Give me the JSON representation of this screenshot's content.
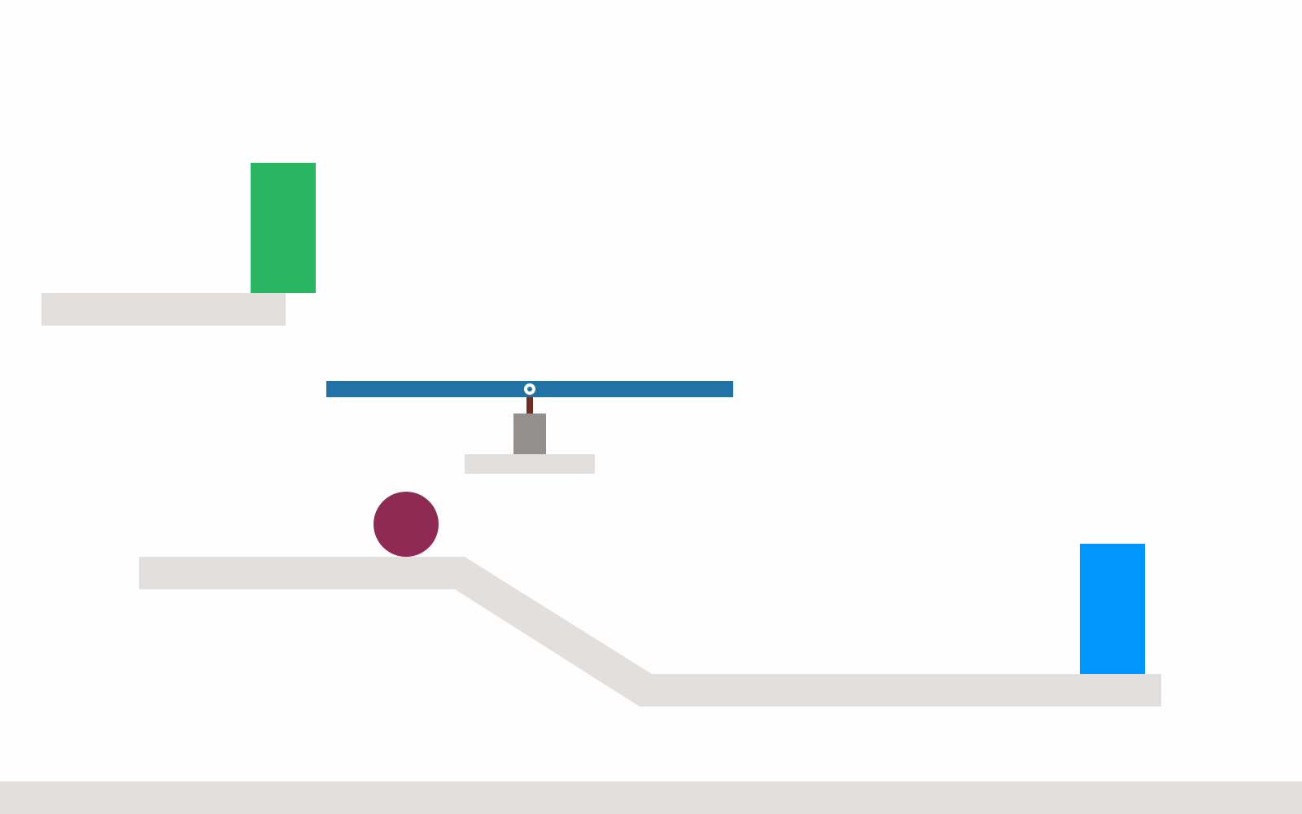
{
  "colors": {
    "background": "#fefefe",
    "platform": "#e2dfdd",
    "goal": "#2ab563",
    "target_block": "#0096fe",
    "lever_bar": "#2372a6",
    "lever_pivot": "#ffffff",
    "lever_post": "#6e2f20",
    "lever_base": "#928f8d",
    "ball": "#8f2a55"
  },
  "scene": {
    "objects": [
      {
        "name": "upper-left-ledge",
        "kind": "static-platform",
        "color_key": "platform"
      },
      {
        "name": "green-goal-block",
        "kind": "goal",
        "color_key": "goal"
      },
      {
        "name": "seesaw-plank",
        "kind": "lever",
        "color_key": "lever_bar"
      },
      {
        "name": "seesaw-pivot-icon",
        "kind": "pivot-joint",
        "color_key": "lever_pivot"
      },
      {
        "name": "seesaw-post",
        "kind": "lever-support",
        "color_key": "lever_post"
      },
      {
        "name": "seesaw-base-block",
        "kind": "lever-support",
        "color_key": "lever_base"
      },
      {
        "name": "seesaw-shelf",
        "kind": "static-platform",
        "color_key": "platform"
      },
      {
        "name": "red-ball",
        "kind": "dynamic-ball",
        "color_key": "ball"
      },
      {
        "name": "ramp-track",
        "kind": "static-platform",
        "color_key": "platform"
      },
      {
        "name": "blue-block",
        "kind": "dynamic-block",
        "color_key": "target_block"
      },
      {
        "name": "ground-floor",
        "kind": "static-platform",
        "color_key": "platform"
      }
    ]
  }
}
